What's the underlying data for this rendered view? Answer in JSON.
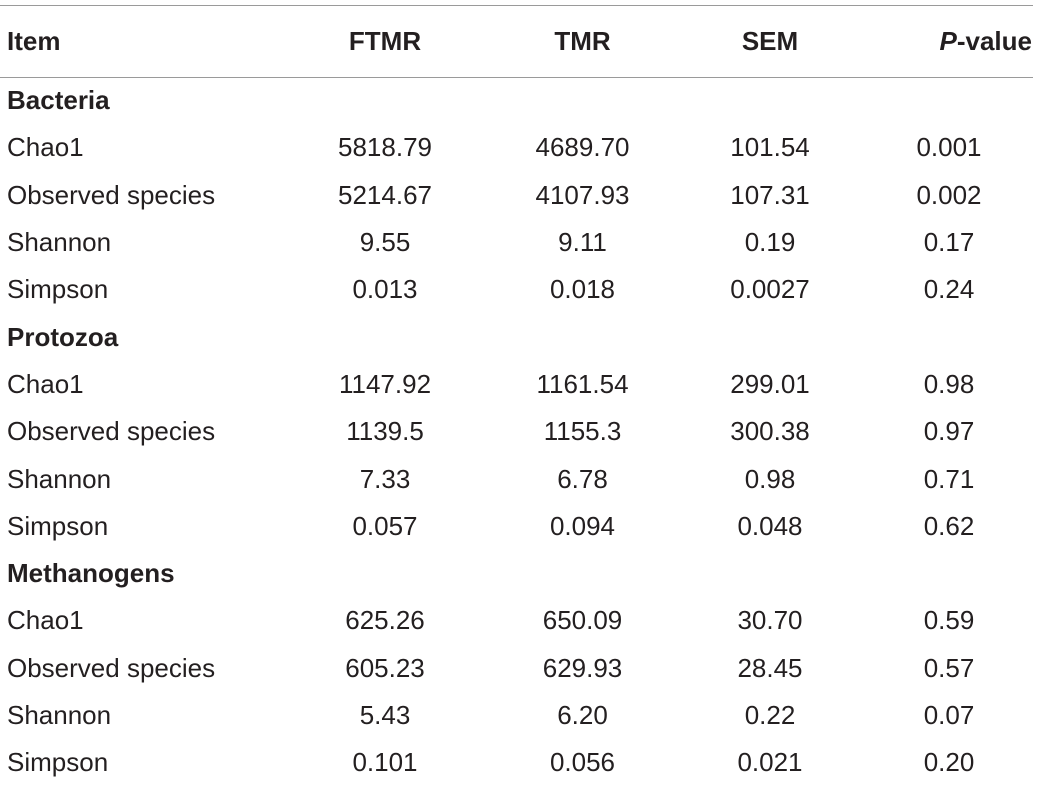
{
  "header": {
    "item": "Item",
    "ftmr": "FTMR",
    "tmr": "TMR",
    "sem": "SEM",
    "p_italic": "P",
    "p_rest": "-value"
  },
  "sections": [
    {
      "title": "Bacteria",
      "rows": [
        {
          "item": "Chao1",
          "ftmr": "5818.79",
          "tmr": "4689.70",
          "sem": "101.54",
          "p": "0.001"
        },
        {
          "item": "Observed species",
          "ftmr": "5214.67",
          "tmr": "4107.93",
          "sem": "107.31",
          "p": "0.002"
        },
        {
          "item": "Shannon",
          "ftmr": "9.55",
          "tmr": "9.11",
          "sem": "0.19",
          "p": "0.17"
        },
        {
          "item": "Simpson",
          "ftmr": "0.013",
          "tmr": "0.018",
          "sem": "0.0027",
          "p": "0.24"
        }
      ]
    },
    {
      "title": "Protozoa",
      "rows": [
        {
          "item": "Chao1",
          "ftmr": "1147.92",
          "tmr": "1161.54",
          "sem": "299.01",
          "p": "0.98"
        },
        {
          "item": "Observed species",
          "ftmr": "1139.5",
          "tmr": "1155.3",
          "sem": "300.38",
          "p": "0.97"
        },
        {
          "item": "Shannon",
          "ftmr": "7.33",
          "tmr": "6.78",
          "sem": "0.98",
          "p": "0.71"
        },
        {
          "item": "Simpson",
          "ftmr": "0.057",
          "tmr": "0.094",
          "sem": "0.048",
          "p": "0.62"
        }
      ]
    },
    {
      "title": "Methanogens",
      "rows": [
        {
          "item": "Chao1",
          "ftmr": "625.26",
          "tmr": "650.09",
          "sem": "30.70",
          "p": "0.59"
        },
        {
          "item": "Observed species",
          "ftmr": "605.23",
          "tmr": "629.93",
          "sem": "28.45",
          "p": "0.57"
        },
        {
          "item": "Shannon",
          "ftmr": "5.43",
          "tmr": "6.20",
          "sem": "0.22",
          "p": "0.07"
        },
        {
          "item": "Simpson",
          "ftmr": "0.101",
          "tmr": "0.056",
          "sem": "0.021",
          "p": "0.20"
        }
      ]
    }
  ]
}
